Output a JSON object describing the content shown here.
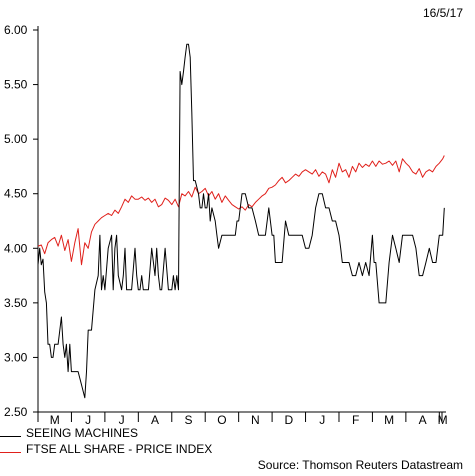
{
  "header": {
    "date": "16/5/17"
  },
  "footer": {
    "source": "Source: Thomson Reuters Datastream"
  },
  "legend": [
    {
      "label": "SEEING MACHINES",
      "color": "#000000"
    },
    {
      "label": "FTSE ALL SHARE - PRICE INDEX",
      "color": "#e0201b"
    }
  ],
  "chart_data": {
    "type": "line",
    "ylim": [
      2.5,
      6.0
    ],
    "yticks": [
      "6.00",
      "5.50",
      "5.00",
      "4.50",
      "4.00",
      "3.50",
      "3.00",
      "2.50"
    ],
    "ytick_values": [
      6.0,
      5.5,
      5.0,
      4.5,
      4.0,
      3.5,
      3.0,
      2.5
    ],
    "xlim": [
      0,
      12.2
    ],
    "xticks": [
      "M",
      "J",
      "J",
      "A",
      "S",
      "O",
      "N",
      "D",
      "J",
      "F",
      "M",
      "A",
      "M"
    ],
    "xtick_positions": [
      0,
      1,
      2,
      3,
      4,
      5,
      6,
      7,
      8,
      9,
      10,
      11,
      12
    ],
    "grid": false,
    "series": [
      {
        "name": "SEEING MACHINES",
        "color": "#000000",
        "x": [
          0.0,
          0.05,
          0.1,
          0.15,
          0.2,
          0.25,
          0.3,
          0.35,
          0.4,
          0.45,
          0.5,
          0.6,
          0.7,
          0.75,
          0.8,
          0.85,
          0.9,
          0.95,
          1.0,
          1.05,
          1.1,
          1.2,
          1.3,
          1.4,
          1.45,
          1.5,
          1.55,
          1.6,
          1.7,
          1.8,
          1.85,
          1.9,
          1.95,
          2.0,
          2.1,
          2.2,
          2.25,
          2.3,
          2.35,
          2.4,
          2.5,
          2.55,
          2.6,
          2.65,
          2.7,
          2.8,
          2.9,
          2.95,
          3.0,
          3.05,
          3.1,
          3.15,
          3.2,
          3.3,
          3.4,
          3.5,
          3.55,
          3.6,
          3.65,
          3.7,
          3.8,
          3.9,
          4.0,
          4.05,
          4.1,
          4.15,
          4.2,
          4.25,
          4.3,
          4.35,
          4.4,
          4.45,
          4.5,
          4.55,
          4.6,
          4.65,
          4.7,
          4.8,
          4.85,
          4.9,
          4.95,
          5.0,
          5.05,
          5.1,
          5.15,
          5.2,
          5.3,
          5.35,
          5.4,
          5.5,
          5.6,
          5.7,
          5.8,
          5.85,
          5.9,
          5.95,
          6.0,
          6.1,
          6.2,
          6.3,
          6.4,
          6.5,
          6.6,
          6.7,
          6.8,
          6.9,
          7.0,
          7.05,
          7.1,
          7.2,
          7.3,
          7.4,
          7.5,
          7.6,
          7.7,
          7.8,
          7.9,
          8.0,
          8.1,
          8.2,
          8.3,
          8.4,
          8.5,
          8.6,
          8.7,
          8.8,
          8.9,
          9.0,
          9.05,
          9.1,
          9.2,
          9.3,
          9.4,
          9.5,
          9.6,
          9.7,
          9.8,
          9.9,
          10.0,
          10.05,
          10.1,
          10.2,
          10.3,
          10.4,
          10.5,
          10.6,
          10.7,
          10.8,
          10.9,
          11.0,
          11.1,
          11.2,
          11.3,
          11.4,
          11.5,
          11.6,
          11.7,
          11.8,
          11.9,
          12.0,
          12.1,
          12.15
        ],
        "values": [
          3.85,
          4.0,
          3.85,
          3.9,
          3.6,
          3.5,
          3.12,
          3.12,
          3.0,
          3.0,
          3.12,
          3.12,
          3.37,
          3.12,
          3.0,
          3.12,
          2.87,
          3.12,
          2.87,
          2.87,
          2.87,
          2.87,
          2.75,
          2.63,
          2.87,
          3.25,
          3.25,
          3.25,
          3.62,
          3.75,
          4.12,
          3.62,
          3.75,
          3.62,
          4.0,
          4.12,
          3.62,
          4.0,
          4.12,
          3.75,
          3.62,
          3.75,
          4.0,
          3.62,
          3.62,
          3.62,
          4.0,
          3.75,
          3.62,
          3.62,
          3.75,
          3.62,
          3.62,
          3.62,
          4.0,
          3.75,
          4.0,
          3.75,
          3.62,
          3.62,
          4.0,
          3.62,
          3.62,
          3.75,
          3.62,
          3.75,
          3.62,
          5.62,
          5.5,
          5.62,
          5.75,
          5.87,
          5.87,
          5.75,
          5.25,
          4.62,
          4.62,
          4.5,
          4.37,
          4.37,
          4.5,
          4.37,
          4.37,
          4.5,
          4.25,
          4.37,
          4.25,
          4.12,
          4.0,
          4.12,
          4.12,
          4.12,
          4.12,
          4.12,
          4.12,
          4.25,
          4.25,
          4.5,
          4.5,
          4.37,
          4.37,
          4.25,
          4.12,
          4.12,
          4.12,
          4.37,
          4.12,
          4.12,
          3.87,
          3.87,
          3.87,
          4.25,
          4.12,
          4.12,
          4.12,
          4.12,
          4.12,
          4.0,
          4.0,
          4.12,
          4.37,
          4.5,
          4.5,
          4.37,
          4.37,
          4.25,
          4.25,
          4.12,
          4.0,
          3.87,
          3.87,
          3.87,
          3.75,
          3.75,
          3.87,
          3.75,
          3.87,
          3.75,
          4.12,
          3.87,
          3.87,
          3.5,
          3.5,
          3.5,
          3.87,
          4.12,
          4.0,
          3.87,
          4.12,
          4.12,
          4.12,
          4.12,
          4.0,
          3.75,
          3.75,
          3.87,
          4.0,
          3.87,
          3.87,
          4.12,
          4.12,
          4.37
        ]
      },
      {
        "name": "FTSE ALL SHARE - PRICE INDEX",
        "color": "#e0201b",
        "x": [
          0.0,
          0.1,
          0.2,
          0.3,
          0.4,
          0.5,
          0.6,
          0.7,
          0.8,
          0.9,
          1.0,
          1.1,
          1.2,
          1.3,
          1.4,
          1.5,
          1.6,
          1.7,
          1.8,
          1.9,
          2.0,
          2.1,
          2.2,
          2.3,
          2.4,
          2.5,
          2.6,
          2.7,
          2.8,
          2.9,
          3.0,
          3.1,
          3.2,
          3.3,
          3.4,
          3.5,
          3.6,
          3.7,
          3.8,
          3.9,
          4.0,
          4.1,
          4.2,
          4.3,
          4.4,
          4.5,
          4.6,
          4.7,
          4.8,
          4.9,
          5.0,
          5.1,
          5.2,
          5.3,
          5.4,
          5.5,
          5.6,
          5.7,
          5.8,
          5.9,
          6.0,
          6.1,
          6.2,
          6.3,
          6.4,
          6.5,
          6.6,
          6.7,
          6.8,
          6.9,
          7.0,
          7.1,
          7.2,
          7.3,
          7.4,
          7.5,
          7.6,
          7.7,
          7.8,
          7.9,
          8.0,
          8.1,
          8.2,
          8.3,
          8.4,
          8.5,
          8.6,
          8.7,
          8.8,
          8.9,
          9.0,
          9.1,
          9.2,
          9.3,
          9.4,
          9.5,
          9.6,
          9.7,
          9.8,
          9.9,
          10.0,
          10.1,
          10.2,
          10.3,
          10.4,
          10.5,
          10.6,
          10.7,
          10.8,
          10.9,
          11.0,
          11.1,
          11.2,
          11.3,
          11.4,
          11.5,
          11.6,
          11.7,
          11.8,
          11.9,
          12.0,
          12.1,
          12.15
        ],
        "values": [
          4.02,
          4.03,
          3.95,
          4.05,
          4.08,
          4.1,
          4.02,
          4.12,
          3.98,
          4.08,
          3.88,
          4.05,
          4.18,
          3.85,
          4.05,
          4.0,
          4.15,
          4.22,
          4.25,
          4.28,
          4.3,
          4.32,
          4.3,
          4.35,
          4.32,
          4.38,
          4.45,
          4.42,
          4.48,
          4.45,
          4.45,
          4.47,
          4.44,
          4.46,
          4.42,
          4.45,
          4.38,
          4.4,
          4.46,
          4.44,
          4.4,
          4.45,
          4.38,
          4.5,
          4.48,
          4.52,
          4.47,
          4.56,
          4.5,
          4.52,
          4.55,
          4.48,
          4.52,
          4.45,
          4.5,
          4.42,
          4.48,
          4.44,
          4.4,
          4.38,
          4.36,
          4.38,
          4.35,
          4.4,
          4.38,
          4.42,
          4.45,
          4.48,
          4.5,
          4.55,
          4.56,
          4.58,
          4.62,
          4.65,
          4.6,
          4.62,
          4.65,
          4.68,
          4.66,
          4.7,
          4.72,
          4.7,
          4.68,
          4.72,
          4.66,
          4.7,
          4.68,
          4.6,
          4.72,
          4.65,
          4.78,
          4.7,
          4.72,
          4.65,
          4.75,
          4.7,
          4.78,
          4.74,
          4.77,
          4.75,
          4.8,
          4.75,
          4.8,
          4.77,
          4.78,
          4.8,
          4.76,
          4.8,
          4.7,
          4.82,
          4.78,
          4.75,
          4.7,
          4.68,
          4.73,
          4.65,
          4.7,
          4.72,
          4.7,
          4.75,
          4.78,
          4.82,
          4.85
        ]
      }
    ]
  }
}
